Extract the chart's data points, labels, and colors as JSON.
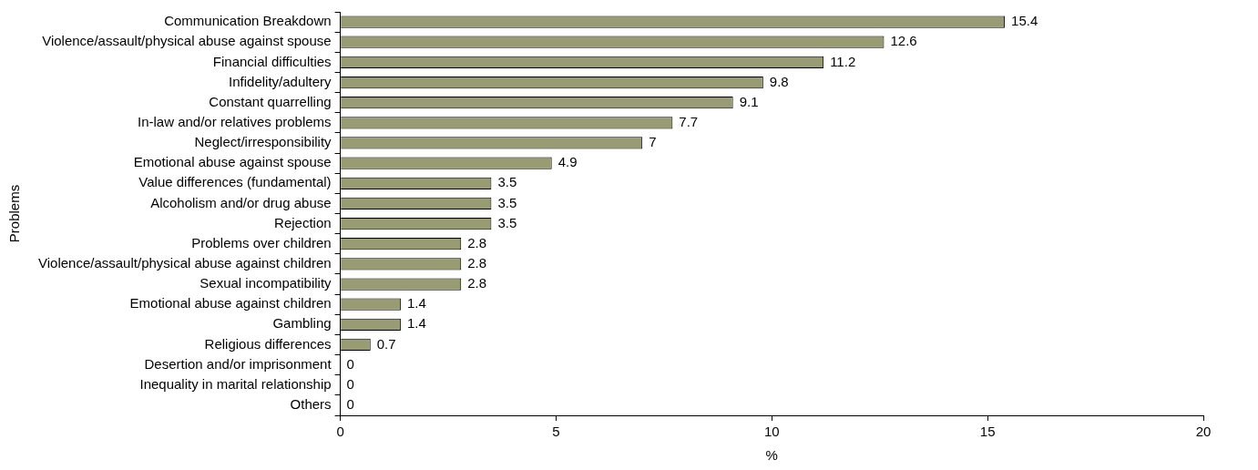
{
  "chart_data": {
    "type": "bar",
    "orientation": "horizontal",
    "xlabel": "%",
    "ylabel": "Problems",
    "categories": [
      "Communication Breakdown",
      "Violence/assault/physical abuse against spouse",
      "Financial difficulties",
      "Infidelity/adultery",
      "Constant quarrelling",
      "In-law and/or relatives problems",
      "Neglect/irresponsibility",
      "Emotional abuse against spouse",
      "Value differences (fundamental)",
      "Alcoholism and/or drug abuse",
      "Rejection",
      "Problems over children",
      "Violence/assault/physical abuse against children",
      "Sexual incompatibility",
      "Emotional abuse against children",
      "Gambling",
      "Religious differences",
      "Desertion and/or imprisonment",
      "Inequality in marital relationship",
      "Others"
    ],
    "values": [
      15.4,
      12.6,
      11.2,
      9.8,
      9.1,
      7.7,
      7,
      4.9,
      3.5,
      3.5,
      3.5,
      2.8,
      2.8,
      2.8,
      1.4,
      1.4,
      0.7,
      0,
      0,
      0
    ],
    "color": "#999b72",
    "xlim": [
      0,
      20
    ],
    "xticks": [
      0,
      5,
      10,
      15,
      20
    ],
    "data_labels": true,
    "grid": false,
    "legend": false
  }
}
